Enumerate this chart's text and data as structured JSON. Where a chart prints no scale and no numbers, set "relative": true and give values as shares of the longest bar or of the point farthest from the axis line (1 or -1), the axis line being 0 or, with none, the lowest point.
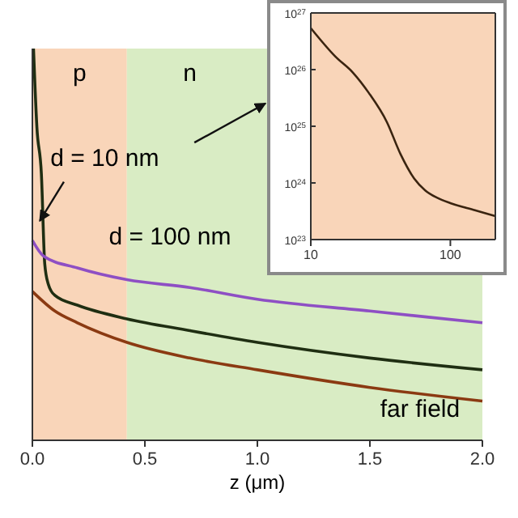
{
  "chart_data": [
    {
      "type": "line",
      "relative": true,
      "xlabel": "z (μm)",
      "xlim": [
        0,
        2
      ],
      "xticks": [
        {
          "value": 0,
          "label": "0.0"
        },
        0.5,
        {
          "value": 1,
          "label": "1.0"
        },
        1.5,
        {
          "value": 2,
          "label": "2.0"
        }
      ],
      "bands": [
        {
          "axis": "x",
          "from": 0,
          "to": 0.42,
          "label": "p",
          "color": "#f9d5b9"
        },
        {
          "axis": "x",
          "from": 0.42,
          "to": 2,
          "label": "n",
          "color": "#d9ecc4"
        }
      ],
      "series": [
        {
          "name": "d = 10 nm",
          "color": "#1f2e12",
          "x": [
            0.005,
            0.02,
            0.04,
            0.055,
            0.07,
            0.1,
            0.2,
            0.42,
            0.7,
            1.0,
            1.5,
            2.0
          ],
          "values": [
            1.0,
            0.8,
            0.68,
            0.45,
            0.4,
            0.37,
            0.345,
            0.31,
            0.28,
            0.25,
            0.21,
            0.18
          ]
        },
        {
          "name": "d = 100 nm",
          "color": "#8e4fc4",
          "x": [
            0,
            0.05,
            0.2,
            0.42,
            0.7,
            1.0,
            1.5,
            2.0
          ],
          "values": [
            0.51,
            0.47,
            0.44,
            0.41,
            0.39,
            0.36,
            0.33,
            0.3
          ]
        },
        {
          "name": "far field",
          "color": "#8b3a12",
          "x": [
            0,
            0.1,
            0.2,
            0.42,
            0.7,
            1.0,
            1.5,
            2.0
          ],
          "values": [
            0.38,
            0.33,
            0.3,
            0.25,
            0.21,
            0.18,
            0.135,
            0.1
          ]
        }
      ]
    },
    {
      "type": "line",
      "log": "xy",
      "xlim": [
        10,
        210
      ],
      "xticks": [
        10,
        100
      ],
      "ylim": [
        1e+23,
        1e+27
      ],
      "yticks": [
        {
          "value": 1e+23,
          "label": "10$^{23}$"
        },
        {
          "value": 1e+24,
          "label": "10$^{24}$"
        },
        {
          "value": 1e+25,
          "label": "10$^{25}$"
        },
        {
          "value": 1e+26,
          "label": "10$^{26}$"
        },
        {
          "value": 1e+27,
          "label": "10$^{27}$"
        }
      ],
      "bands": [
        {
          "axis": "x",
          "from": 10,
          "to": 210,
          "color": "#f9d5b9"
        }
      ],
      "series": [
        {
          "color": "#3a2410",
          "x": [
            10,
            15,
            20,
            26,
            35,
            44,
            55,
            66,
            80,
            100,
            150,
            210
          ],
          "values": [
            5.4e+26,
            1.7e+26,
            8.9e+25,
            3.9e+25,
            1.2e+25,
            3.2e+24,
            1.2e+24,
            7.4e+23,
            5.5e+23,
            4.4e+23,
            3.3e+23,
            2.6e+23
          ]
        }
      ]
    }
  ]
}
